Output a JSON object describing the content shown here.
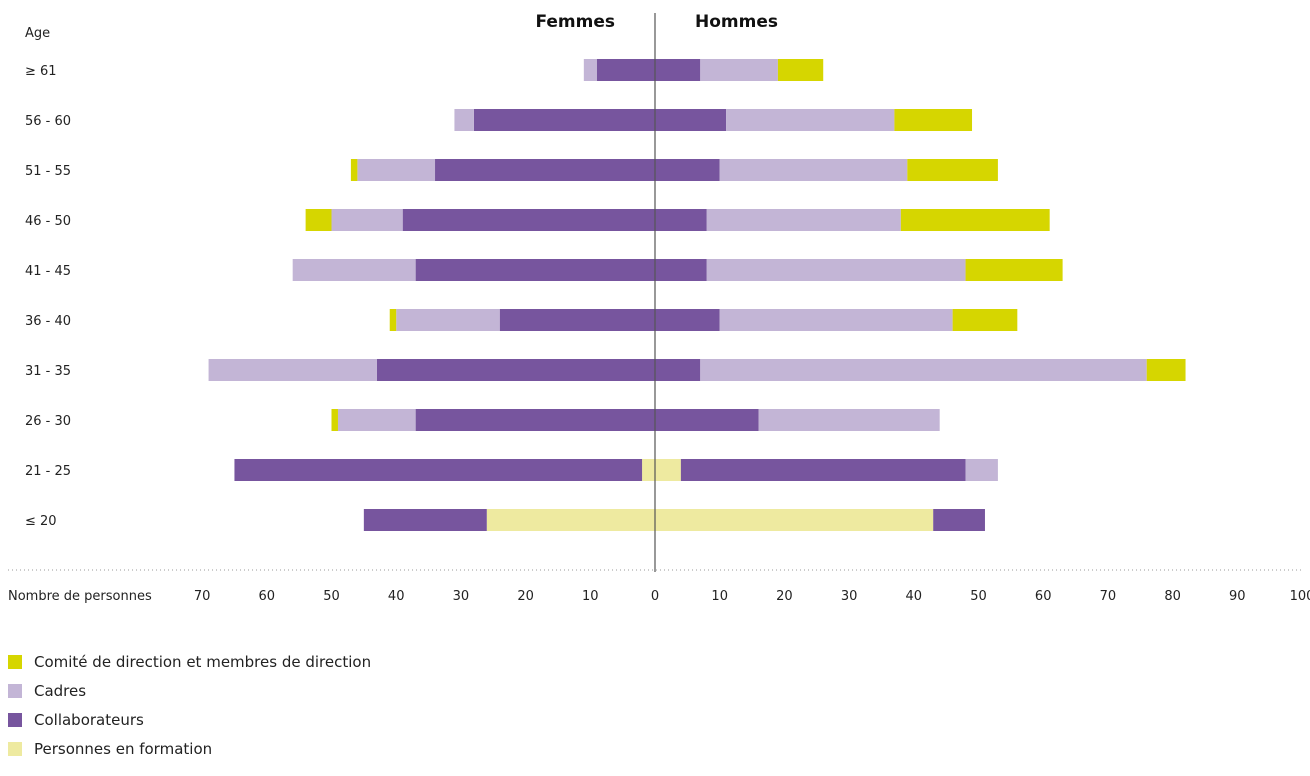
{
  "chart_data": {
    "type": "bar",
    "orientation": "horizontal-population-pyramid",
    "left_title": "Femmes",
    "right_title": "Hommes",
    "y_axis_label": "Age",
    "x_axis_label": "Nombre de personnes",
    "categories": [
      "≥ 61",
      "56 - 60",
      "51 - 55",
      "46 - 50",
      "41 - 45",
      "36 - 40",
      "31 - 35",
      "26 - 30",
      "21 - 25",
      "≤ 20"
    ],
    "left_ticks": [
      70,
      60,
      50,
      40,
      30,
      20,
      10
    ],
    "right_ticks": [
      0,
      10,
      20,
      30,
      40,
      50,
      60,
      70,
      80,
      90,
      100
    ],
    "xlim_left": [
      0,
      72
    ],
    "xlim_right": [
      0,
      100
    ],
    "series_order_from_center": [
      "Personnes en formation",
      "Collaborateurs",
      "Cadres",
      "Comité de direction et membres de direction"
    ],
    "series": [
      {
        "name": "Comité de direction et membres de direction",
        "color": "#d6d600",
        "femmes": [
          0,
          0,
          1,
          4,
          0,
          1,
          0,
          1,
          0,
          0
        ],
        "hommes": [
          7,
          12,
          14,
          23,
          15,
          10,
          6,
          0,
          0,
          0
        ]
      },
      {
        "name": "Cadres",
        "color": "#c3b5d6",
        "femmes": [
          2,
          3,
          12,
          11,
          19,
          16,
          26,
          12,
          0,
          0
        ],
        "hommes": [
          12,
          26,
          29,
          30,
          40,
          36,
          69,
          28,
          5,
          0
        ]
      },
      {
        "name": "Collaborateurs",
        "color": "#77559e",
        "femmes": [
          9,
          28,
          34,
          39,
          37,
          24,
          43,
          37,
          63,
          19
        ],
        "hommes": [
          7,
          11,
          10,
          8,
          8,
          10,
          7,
          16,
          44,
          8
        ]
      },
      {
        "name": "Personnes en formation",
        "color": "#eeeaa0",
        "femmes": [
          0,
          0,
          0,
          0,
          0,
          0,
          0,
          0,
          2,
          26
        ],
        "hommes": [
          0,
          0,
          0,
          0,
          0,
          0,
          0,
          0,
          4,
          43
        ]
      }
    ]
  }
}
